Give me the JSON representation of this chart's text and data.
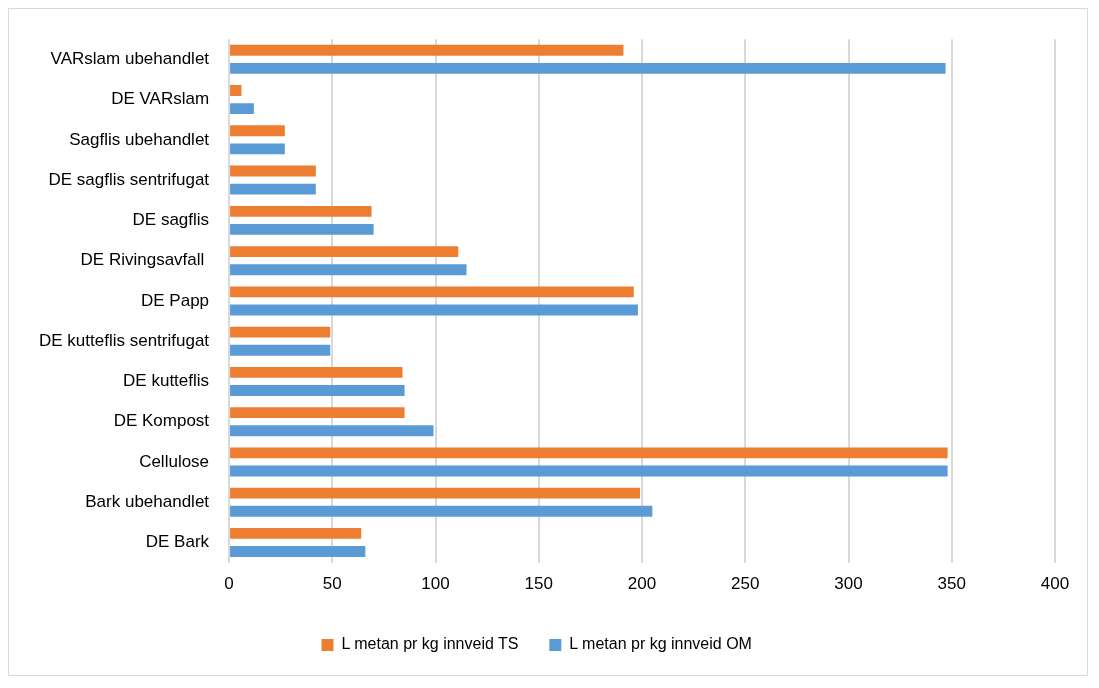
{
  "chart_data": {
    "type": "bar",
    "orientation": "horizontal",
    "categories": [
      "VARslam ubehandlet",
      "DE VARslam",
      "Sagflis ubehandlet",
      "DE sagflis sentrifugat",
      "DE sagflis",
      "DE Rivingsavfall ",
      "DE Papp",
      "DE kutteflis sentrifugat",
      "DE kutteflis",
      "DE Kompost",
      "Cellulose",
      "Bark ubehandlet",
      "DE Bark"
    ],
    "series": [
      {
        "name": "L metan pr kg innveid TS",
        "color": "#ed7d31",
        "values": [
          191,
          6,
          27,
          42,
          69,
          111,
          196,
          49,
          84,
          85,
          348,
          199,
          64
        ]
      },
      {
        "name": "L metan pr kg innveid OM",
        "color": "#5b9bd5",
        "values": [
          347,
          12,
          27,
          42,
          70,
          115,
          198,
          49,
          85,
          99,
          348,
          205,
          66
        ]
      }
    ],
    "xlim": [
      0,
      400
    ],
    "xticks": [
      0,
      50,
      100,
      150,
      200,
      250,
      300,
      350,
      400
    ],
    "grid": "x",
    "legend": "bottom"
  }
}
